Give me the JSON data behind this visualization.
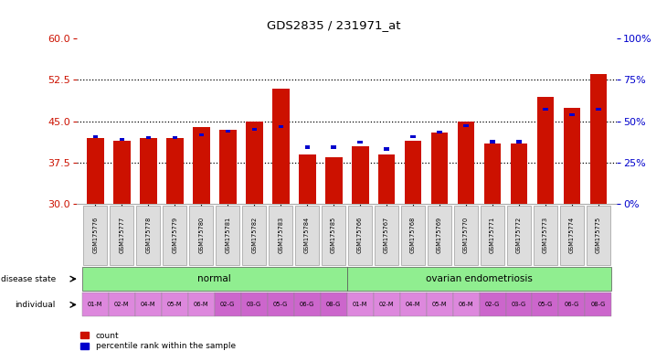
{
  "title": "GDS2835 / 231971_at",
  "samples": [
    "GSM175776",
    "GSM175777",
    "GSM175778",
    "GSM175779",
    "GSM175780",
    "GSM175781",
    "GSM175782",
    "GSM175783",
    "GSM175784",
    "GSM175785",
    "GSM175766",
    "GSM175767",
    "GSM175768",
    "GSM175769",
    "GSM175770",
    "GSM175771",
    "GSM175772",
    "GSM175773",
    "GSM175774",
    "GSM175775"
  ],
  "counts": [
    42.0,
    41.5,
    42.0,
    42.0,
    44.0,
    43.5,
    45.0,
    51.0,
    39.0,
    38.5,
    40.5,
    39.0,
    41.5,
    43.0,
    45.0,
    41.0,
    41.0,
    49.5,
    47.5,
    53.5
  ],
  "percentiles_y": [
    42.2,
    41.7,
    42.0,
    42.0,
    42.5,
    43.2,
    43.5,
    44.0,
    40.3,
    40.3,
    41.2,
    40.0,
    42.2,
    43.0,
    44.2,
    41.3,
    41.3,
    47.2,
    46.2,
    47.2
  ],
  "bar_base": 30,
  "ylim_left": [
    30,
    60
  ],
  "ylim_right": [
    0,
    100
  ],
  "yticks_left": [
    30,
    37.5,
    45,
    52.5,
    60
  ],
  "yticks_right": [
    0,
    25,
    50,
    75,
    100
  ],
  "bar_color": "#cc1100",
  "percentile_color": "#0000cc",
  "disease_color": "#90ee90",
  "individual_color_light": "#dd88dd",
  "individual_color_dark": "#cc66cc",
  "tick_color_left": "#cc1100",
  "tick_color_right": "#0000cc",
  "disease_normal_label": "normal",
  "disease_ovarian_label": "ovarian endometriosis",
  "individuals": [
    "01-M",
    "02-M",
    "04-M",
    "05-M",
    "06-M",
    "02-G",
    "03-G",
    "05-G",
    "06-G",
    "08-G",
    "01-M",
    "02-M",
    "04-M",
    "05-M",
    "06-M",
    "02-G",
    "03-G",
    "05-G",
    "06-G",
    "08-G"
  ],
  "legend_count": "count",
  "legend_pct": "percentile rank within the sample",
  "disease_state_label": "disease state",
  "individual_label": "individual"
}
